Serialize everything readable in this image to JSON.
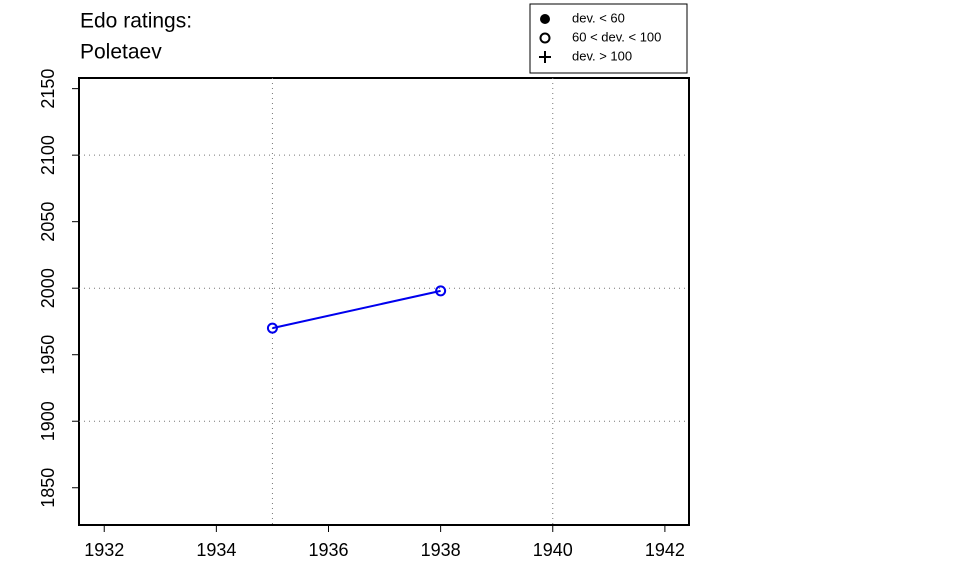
{
  "chart_data": {
    "type": "line",
    "title": [
      "Edo ratings:",
      "Poletaev"
    ],
    "x": [
      1935,
      1938
    ],
    "series": [
      {
        "name": "Poletaev",
        "color": "#0000ee",
        "marker": "open-circle",
        "values": [
          1970,
          1998
        ]
      }
    ],
    "xlim": [
      1931.55,
      1942.43
    ],
    "ylim": [
      1822,
      2158
    ],
    "xticks": [
      1932,
      1934,
      1936,
      1938,
      1940,
      1942
    ],
    "yticks": [
      1850,
      1900,
      1950,
      2000,
      2050,
      2100,
      2150
    ],
    "xgrid": [
      1935,
      1940
    ],
    "ygrid": [
      1900,
      2000,
      2100
    ],
    "legend": {
      "position": "top-right",
      "items": [
        {
          "marker": "filled-circle",
          "label": "dev. < 60"
        },
        {
          "marker": "open-circle",
          "label": "60 < dev. < 100"
        },
        {
          "marker": "plus",
          "label": "dev. > 100"
        }
      ]
    }
  }
}
